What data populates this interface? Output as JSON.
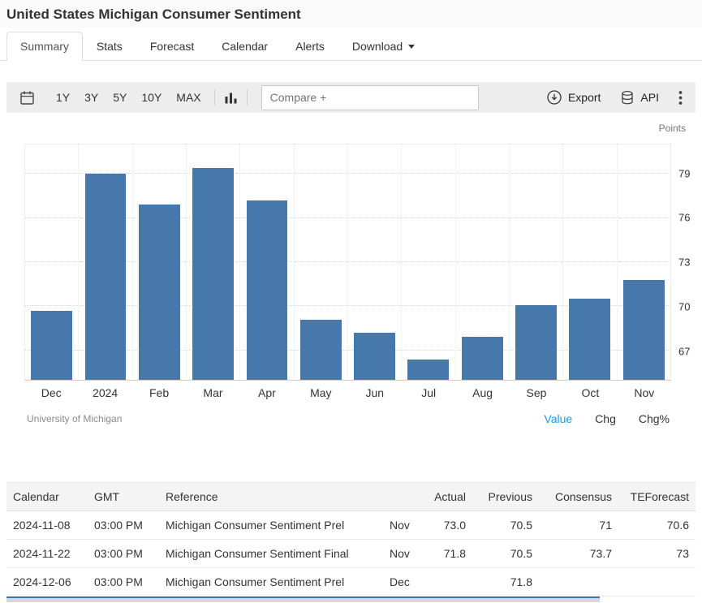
{
  "page": {
    "title": "United States Michigan Consumer Sentiment"
  },
  "tabs": [
    {
      "label": "Summary",
      "active": true,
      "dropdown": false
    },
    {
      "label": "Stats",
      "active": false,
      "dropdown": false
    },
    {
      "label": "Forecast",
      "active": false,
      "dropdown": false
    },
    {
      "label": "Calendar",
      "active": false,
      "dropdown": false
    },
    {
      "label": "Alerts",
      "active": false,
      "dropdown": false
    },
    {
      "label": "Download",
      "active": false,
      "dropdown": true
    }
  ],
  "toolbar": {
    "ranges": [
      "1Y",
      "3Y",
      "5Y",
      "10Y",
      "MAX"
    ],
    "compare_placeholder": "Compare +",
    "export_label": "Export",
    "api_label": "API"
  },
  "chart": {
    "unit_label": "Points",
    "source": "University of Michigan",
    "modes": [
      {
        "label": "Value",
        "active": true
      },
      {
        "label": "Chg",
        "active": false
      },
      {
        "label": "Chg%",
        "active": false
      }
    ]
  },
  "chart_data": {
    "type": "bar",
    "categories": [
      "Dec",
      "2024",
      "Feb",
      "Mar",
      "Apr",
      "May",
      "Jun",
      "Jul",
      "Aug",
      "Sep",
      "Oct",
      "Nov"
    ],
    "values": [
      69.7,
      79.0,
      76.9,
      79.4,
      77.2,
      69.1,
      68.2,
      66.4,
      67.9,
      70.1,
      70.5,
      71.8
    ],
    "title": "United States Michigan Consumer Sentiment",
    "xlabel": "",
    "ylabel": "Points",
    "yticks": [
      67,
      70,
      73,
      76,
      79
    ],
    "ylim": [
      65,
      81
    ],
    "grid": true,
    "legend": false
  },
  "colors": {
    "bar": "#4678ab",
    "link_blue": "#1d9ae3",
    "stub_blue": "#3c78b4"
  },
  "table": {
    "headers": [
      "Calendar",
      "GMT",
      "Reference",
      "",
      "Actual",
      "Previous",
      "Consensus",
      "TEForecast"
    ],
    "rows": [
      [
        "2024-11-08",
        "03:00 PM",
        "Michigan Consumer Sentiment Prel",
        "Nov",
        "73.0",
        "70.5",
        "71",
        "70.6"
      ],
      [
        "2024-11-22",
        "03:00 PM",
        "Michigan Consumer Sentiment Final",
        "Nov",
        "71.8",
        "70.5",
        "73.7",
        "73"
      ],
      [
        "2024-12-06",
        "03:00 PM",
        "Michigan Consumer Sentiment Prel",
        "Dec",
        "",
        "71.8",
        "",
        ""
      ]
    ]
  }
}
